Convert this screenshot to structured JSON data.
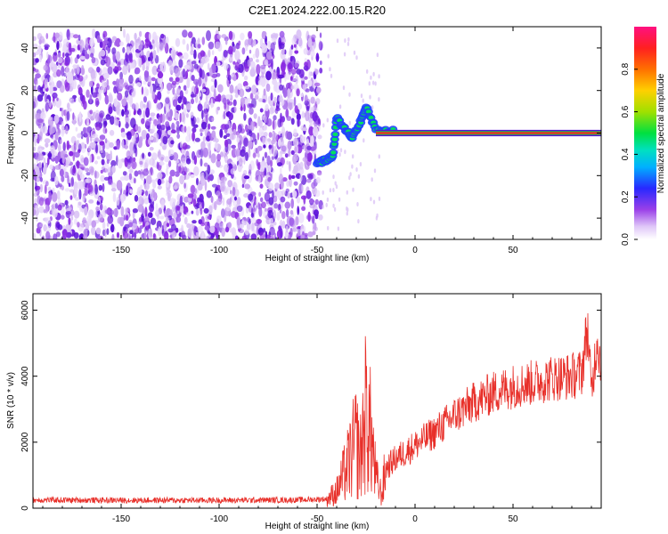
{
  "title": "C2E1.2024.222.00.15.R20",
  "colors": {
    "snr_line": "#e8302a",
    "scatter_purple": "#7a2ee6",
    "scatter_light": "#d9b8f5",
    "background": "#ffffff",
    "axis": "#000000"
  },
  "chart_data": [
    {
      "type": "heatmap",
      "xlabel": "Height of straight line (km)",
      "ylabel": "Frequency (Hz)",
      "xlim": [
        -195,
        95
      ],
      "ylim": [
        -50,
        50
      ],
      "xticks": [
        -150,
        -100,
        -50,
        0,
        50
      ],
      "yticks": [
        -40,
        -20,
        0,
        20,
        40
      ],
      "colorbar": {
        "label": "Normalized spectral amplitude",
        "range": [
          0,
          1
        ],
        "ticks": [
          "0.0",
          "0.2",
          "0.4",
          "0.6",
          "0.8"
        ],
        "tick_values": [
          0.0,
          0.2,
          0.4,
          0.6,
          0.8
        ],
        "colormap": [
          "#ffffff",
          "#c8a0f0",
          "#8a2be2",
          "#3030ff",
          "#00c8ff",
          "#00e060",
          "#c8e000",
          "#ffa000",
          "#ff2020",
          "#ff1080"
        ]
      },
      "regions": [
        {
          "x": [
            -195,
            -48
          ],
          "y": [
            -50,
            47
          ],
          "amplitude": 0.1,
          "description_level": "noise"
        },
        {
          "x": [
            -48,
            -22
          ],
          "y": [
            -16,
            14
          ],
          "amplitude": 0.5,
          "description_level": "transition"
        },
        {
          "x": [
            -22,
            95
          ],
          "y": [
            -1,
            1
          ],
          "amplitude": 1.0,
          "description_level": "signal"
        }
      ],
      "signal_track": [
        {
          "x": -50,
          "y": -14
        },
        {
          "x": -46,
          "y": -13
        },
        {
          "x": -42,
          "y": -11
        },
        {
          "x": -40,
          "y": 7
        },
        {
          "x": -36,
          "y": 2
        },
        {
          "x": -32,
          "y": -2
        },
        {
          "x": -28,
          "y": 5
        },
        {
          "x": -25,
          "y": 12
        },
        {
          "x": -20,
          "y": 2
        },
        {
          "x": -10,
          "y": 1
        },
        {
          "x": 0,
          "y": 0
        },
        {
          "x": 5,
          "y": -1
        },
        {
          "x": 12,
          "y": 0
        },
        {
          "x": 30,
          "y": 0
        },
        {
          "x": 60,
          "y": 0
        },
        {
          "x": 95,
          "y": 0
        }
      ]
    },
    {
      "type": "line",
      "xlabel": "Height of straight line (km)",
      "ylabel": "SNR (10 * v/v)",
      "xlim": [
        -195,
        95
      ],
      "ylim": [
        0,
        6500
      ],
      "xticks": [
        -150,
        -100,
        -50,
        0,
        50
      ],
      "yticks": [
        0,
        2000,
        4000,
        6000
      ],
      "series": [
        {
          "x": [
            -195,
            -150,
            -100,
            -60,
            -45,
            -40,
            -35,
            -30,
            -28,
            -25,
            -22,
            -20,
            -17,
            -15,
            -10,
            -5,
            0,
            10,
            20,
            30,
            40,
            50,
            60,
            70,
            80,
            85,
            88,
            90,
            93,
            95
          ],
          "values": [
            250,
            240,
            240,
            250,
            280,
            500,
            1200,
            2000,
            1500,
            3000,
            2000,
            900,
            400,
            1200,
            1500,
            1700,
            1900,
            2300,
            2800,
            3200,
            3500,
            3700,
            3800,
            3950,
            4000,
            4100,
            5500,
            3500,
            5200,
            4200
          ]
        }
      ]
    }
  ]
}
